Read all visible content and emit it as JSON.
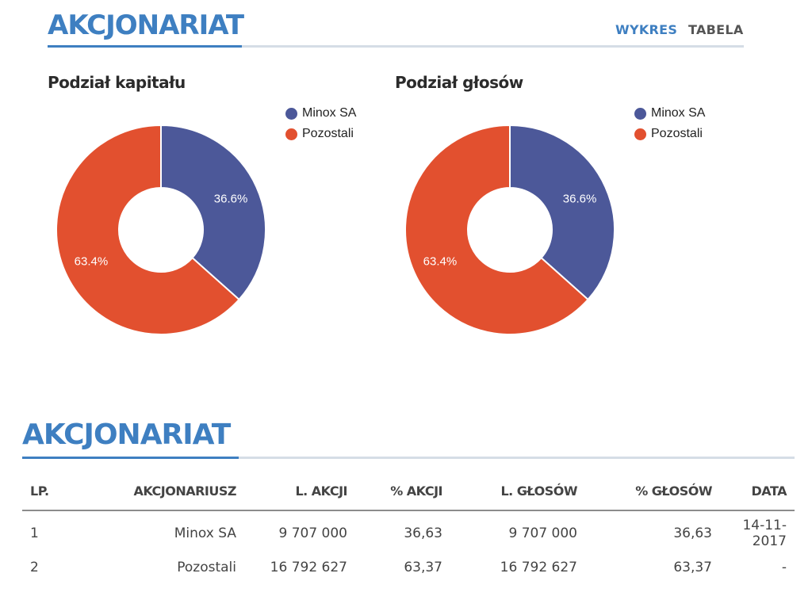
{
  "header": {
    "title": "AKCJONARIAT",
    "tabs": [
      {
        "label": "WYKRES",
        "active": true
      },
      {
        "label": "TABELA",
        "active": false
      }
    ]
  },
  "colors": {
    "accent": "#3e7fc1",
    "series_0": "#4c5899",
    "series_1": "#e2502f"
  },
  "chart_data": [
    {
      "type": "pie",
      "title": "Podział kapitału",
      "categories": [
        "Minox SA",
        "Pozostali"
      ],
      "values": [
        36.6,
        63.4
      ],
      "labels": [
        "36.6%",
        "63.4%"
      ],
      "legend": "top-right"
    },
    {
      "type": "pie",
      "title": "Podział głosów",
      "categories": [
        "Minox SA",
        "Pozostali"
      ],
      "values": [
        36.6,
        63.4
      ],
      "labels": [
        "36.6%",
        "63.4%"
      ],
      "legend": "top-right"
    }
  ],
  "table": {
    "title": "AKCJONARIAT",
    "columns": [
      "LP.",
      "AKCJONARIUSZ",
      "L. AKCJI",
      "% AKCJI",
      "L. GŁOSÓW",
      "% GŁOSÓW",
      "DATA"
    ],
    "rows": [
      [
        "1",
        "Minox SA",
        "9 707 000",
        "36,63",
        "9 707 000",
        "36,63",
        "14-11-2017"
      ],
      [
        "2",
        "Pozostali",
        "16 792 627",
        "63,37",
        "16 792 627",
        "63,37",
        "-"
      ]
    ]
  }
}
